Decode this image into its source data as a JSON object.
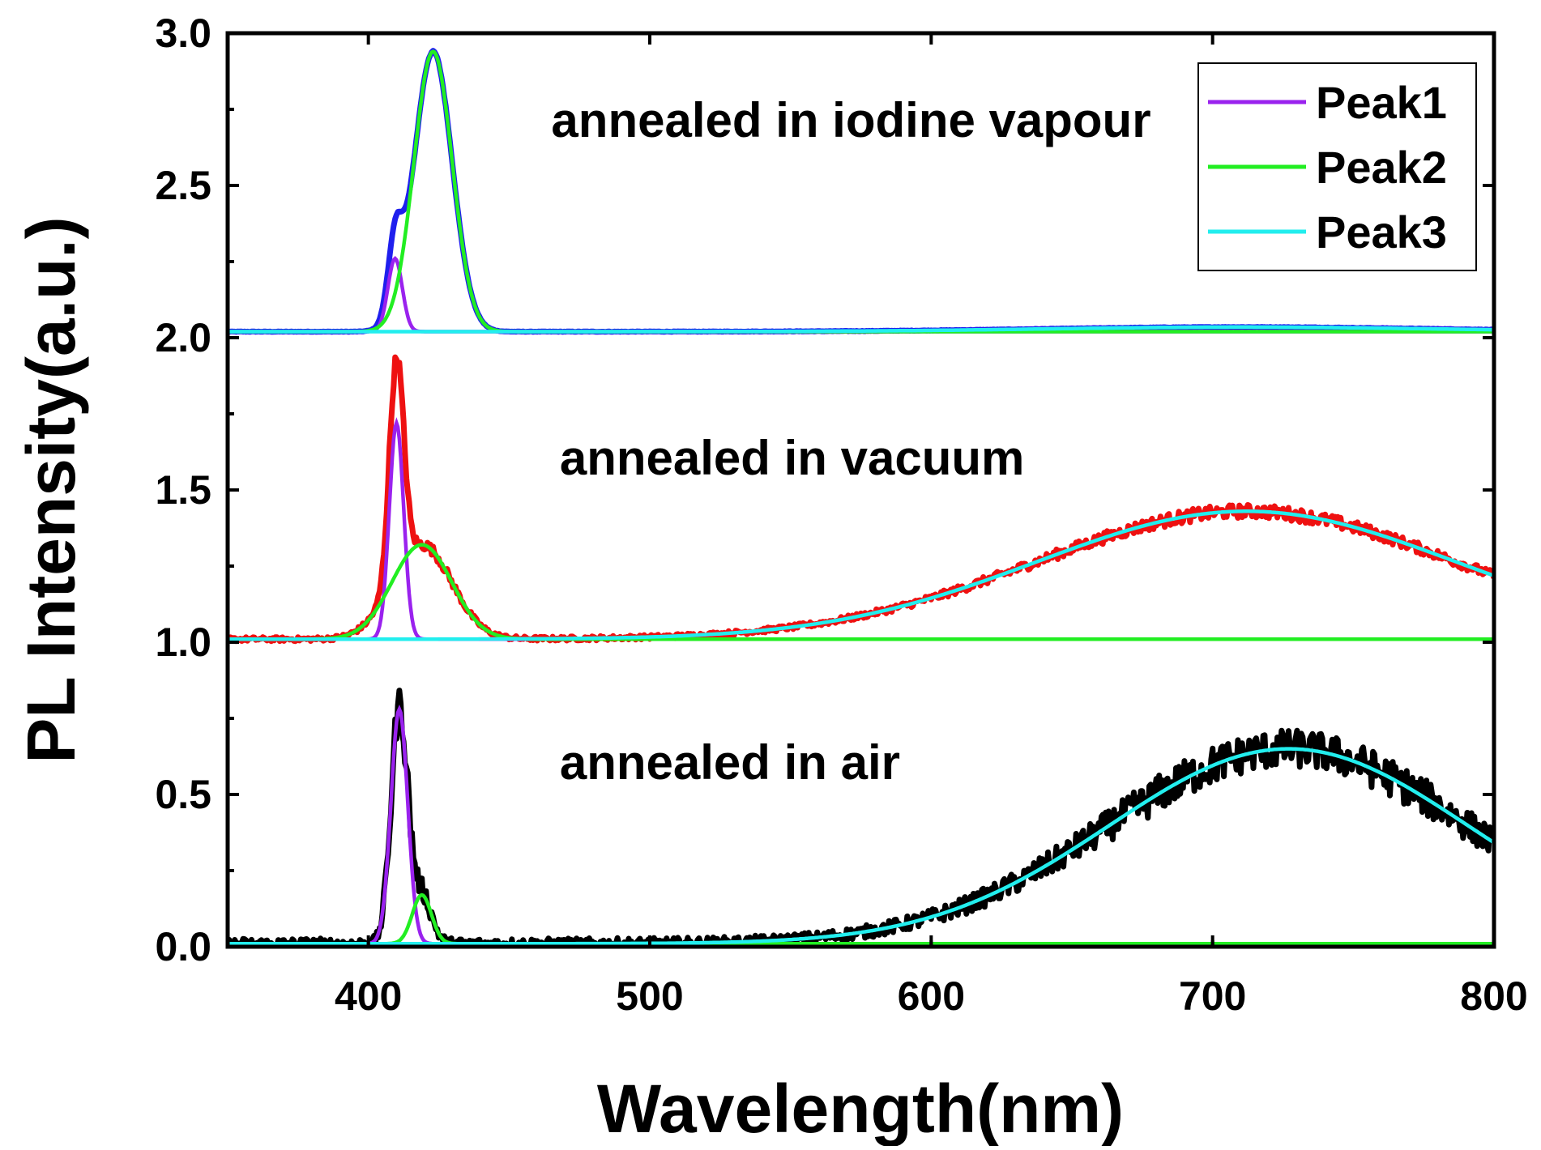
{
  "chart_data": {
    "type": "line",
    "title": "",
    "xlabel": "Wavelength(nm)",
    "ylabel": "PL Intensity(a.u.)",
    "xlim": [
      350,
      800
    ],
    "ylim": [
      0,
      3.0
    ],
    "x_ticks": [
      400,
      500,
      600,
      700,
      800
    ],
    "x_tick_labels": [
      "400",
      "500",
      "600",
      "700",
      "800"
    ],
    "y_ticks": [
      0,
      0.5,
      1.0,
      1.5,
      2.0,
      2.5,
      3.0
    ],
    "y_tick_labels": [
      "0.0",
      "0.5",
      "1.0",
      "1.5",
      "2.0",
      "2.5",
      "3.0"
    ],
    "legend": {
      "position": "top-right",
      "entries": [
        {
          "label": "Peak1",
          "color": "#9a22ee"
        },
        {
          "label": "Peak2",
          "color": "#22ee22"
        },
        {
          "label": "Peak3",
          "color": "#22eeee"
        }
      ]
    },
    "annotations": [
      {
        "text": "annealed in iodine vapour",
        "x": 465,
        "y": 2.66
      },
      {
        "text": "annealed in vacuum",
        "x": 468,
        "y": 1.55
      },
      {
        "text": "annealed in air",
        "x": 468,
        "y": 0.55
      }
    ],
    "samples": [
      {
        "name": "annealed in iodine vapour",
        "offset": 2.0,
        "measured_color": "#1f1fee",
        "baseline": 0.02,
        "noise": 0.002,
        "components": [
          {
            "peak": "Peak1",
            "center": 409.5,
            "amplitude": 0.24,
            "fwhm": 6
          },
          {
            "peak": "Peak2",
            "center": 423,
            "amplitude": 0.92,
            "fwhm": 16
          },
          {
            "peak": "Peak3",
            "center": 710,
            "amplitude": 0.015,
            "fwhm": 160
          }
        ],
        "measured_peaks": [
          {
            "x": 411,
            "y": 2.48
          },
          {
            "x": 423,
            "y": 3.0
          }
        ]
      },
      {
        "name": "annealed in vacuum",
        "offset": 1.0,
        "measured_color": "#ee1111",
        "baseline": 0.01,
        "noise": 0.018,
        "components": [
          {
            "peak": "Peak1",
            "center": 410,
            "amplitude": 0.71,
            "fwhm": 6
          },
          {
            "peak": "Peak2",
            "center": 419,
            "amplitude": 0.31,
            "fwhm": 25
          },
          {
            "peak": "Peak3",
            "center": 712,
            "amplitude": 0.42,
            "fwhm": 175
          }
        ],
        "measured_peaks": [
          {
            "x": 410,
            "y": 2.0
          },
          {
            "x": 422,
            "y": 1.32
          },
          {
            "x": 705,
            "y": 1.47
          }
        ]
      },
      {
        "name": "annealed in air",
        "offset": 0.0,
        "measured_color": "#000000",
        "baseline": 0.01,
        "noise": 0.045,
        "components": [
          {
            "peak": "Peak1",
            "center": 411,
            "amplitude": 0.77,
            "fwhm": 7
          },
          {
            "peak": "Peak2",
            "center": 419,
            "amplitude": 0.16,
            "fwhm": 8
          },
          {
            "peak": "Peak3",
            "center": 727,
            "amplitude": 0.64,
            "fwhm": 150
          }
        ],
        "measured_peaks": [
          {
            "x": 412,
            "y": 0.84
          },
          {
            "x": 710,
            "y": 0.72
          }
        ]
      }
    ]
  }
}
